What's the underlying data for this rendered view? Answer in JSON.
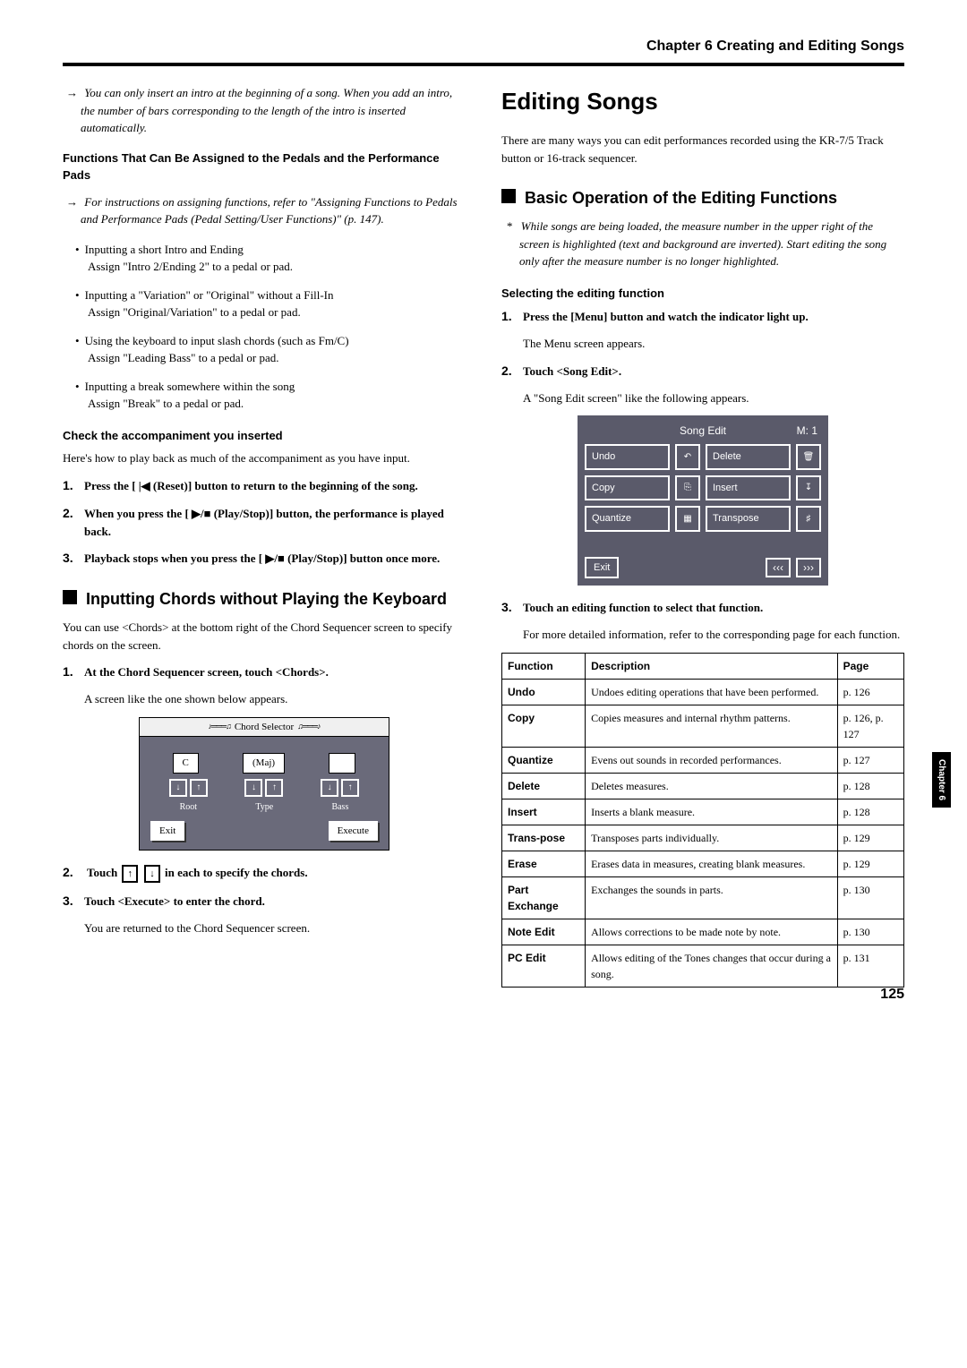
{
  "chapterHeader": "Chapter 6 Creating and Editing Songs",
  "left": {
    "introNote": "You can only insert an intro at the beginning of a song. When you add an intro, the number of bars corresponding to the length of the intro is inserted automatically.",
    "pedalsHead": "Functions That Can Be Assigned to the Pedals and the Performance Pads",
    "pedalsNote": "For instructions on assigning functions, refer to \"Assigning Functions to Pedals and Performance Pads (Pedal Setting/User Functions)\" (p. 147).",
    "bullets": [
      {
        "a": "Inputting a short Intro and Ending",
        "b": "Assign \"Intro 2/Ending 2\" to a pedal or pad."
      },
      {
        "a": "Inputting a \"Variation\" or \"Original\" without a Fill-In",
        "b": "Assign \"Original/Variation\" to a pedal or pad."
      },
      {
        "a": "Using the keyboard to input slash chords (such as Fm/C)",
        "b": "Assign \"Leading Bass\" to a pedal or pad."
      },
      {
        "a": "Inputting a break somewhere within the song",
        "b": "Assign \"Break\" to a pedal or pad."
      }
    ],
    "checkHead": "Check the accompaniment you inserted",
    "checkBody": "Here's how to play back as much of the accompaniment as you have input.",
    "steps1": [
      "Press the [ |◀ (Reset)] button to return to the beginning of the song.",
      "When you press the [ ▶/■ (Play/Stop)] button, the performance is played back.",
      "Playback stops when you press the [ ▶/■ (Play/Stop)] button once more."
    ],
    "chordSection": "Inputting Chords without Playing the Keyboard",
    "chordBody": "You can use <Chords> at the bottom right of the Chord Sequencer screen to specify chords on the screen.",
    "cstep1": "At the Chord Sequencer screen, touch <Chords>.",
    "cstep1b": "A screen like the one shown below appears.",
    "chordSelector": {
      "title": "Chord Selector",
      "root": "C",
      "type": "(Maj)",
      "bass": "",
      "labels": [
        "Root",
        "Type",
        "Bass"
      ],
      "exit": "Exit",
      "execute": "Execute"
    },
    "cstep2a": "Touch ",
    "cstep2b": " in each to specify the chords.",
    "cstep3": "Touch <Execute> to enter the chord.",
    "cstep3b": "You are returned to the Chord Sequencer screen."
  },
  "right": {
    "title": "Editing Songs",
    "intro": "There are many ways you can edit performances recorded using the KR-7/5 Track button or 16-track sequencer.",
    "basicSection": "Basic Operation of the Editing Functions",
    "basicNote": "While songs are being loaded, the measure number in the upper right of the screen is highlighted (text and background are inverted). Start editing the song only after the measure number is no longer highlighted.",
    "selectHead": "Selecting the editing function",
    "rstep1": "Press the [Menu] button and watch the indicator light up.",
    "rstep1b": "The Menu screen appears.",
    "rstep2": "Touch <Song Edit>.",
    "rstep2b": "A \"Song Edit screen\" like the following appears.",
    "songEdit": {
      "title": "Song Edit",
      "m": "M:   1",
      "buttons": [
        "Undo",
        "Delete",
        "Copy",
        "Insert",
        "Quantize",
        "Transpose"
      ],
      "exit": "Exit"
    },
    "rstep3": "Touch an editing function to select that function.",
    "rstep3b": "For more detailed information, refer to the corresponding page for each function.",
    "table": {
      "headers": [
        "Function",
        "Description",
        "Page"
      ],
      "rows": [
        [
          "Undo",
          "Undoes editing operations that have been performed.",
          "p. 126"
        ],
        [
          "Copy",
          "Copies measures and internal rhythm patterns.",
          "p. 126, p. 127"
        ],
        [
          "Quantize",
          "Evens out sounds in recorded performances.",
          "p. 127"
        ],
        [
          "Delete",
          "Deletes measures.",
          "p. 128"
        ],
        [
          "Insert",
          "Inserts a blank measure.",
          "p. 128"
        ],
        [
          "Trans-pose",
          "Transposes parts individually.",
          "p. 129"
        ],
        [
          "Erase",
          "Erases data in measures, creating blank measures.",
          "p. 129"
        ],
        [
          "Part Exchange",
          "Exchanges the sounds in parts.",
          "p. 130"
        ],
        [
          "Note Edit",
          "Allows corrections to be made note by note.",
          "p. 130"
        ],
        [
          "PC Edit",
          "Allows editing of the Tones changes that occur during a song.",
          "p. 131"
        ]
      ]
    }
  },
  "sideTab": "Chapter 6",
  "pageNum": "125"
}
